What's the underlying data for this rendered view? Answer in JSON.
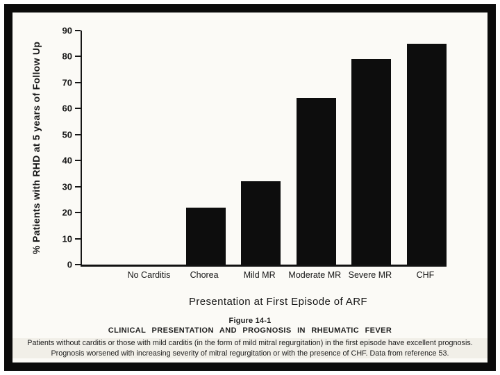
{
  "page": {
    "background": "#fbfaf6",
    "frame_color": "#0b0b0b"
  },
  "chart_data": {
    "type": "bar",
    "categories": [
      "No Carditis",
      "Chorea",
      "Mild MR",
      "Moderate MR",
      "Severe MR",
      "CHF"
    ],
    "values": [
      0,
      22,
      32,
      64,
      79,
      85
    ],
    "title": "",
    "xlabel": "Presentation at First Episode of ARF",
    "ylabel": "% Patients with RHD at 5 years of Follow Up",
    "ylim": [
      0,
      90
    ],
    "ytick_step": 10,
    "grid": false,
    "legend": false,
    "bar_color": "#0d0d0d",
    "axis_color": "#161616"
  },
  "caption": {
    "figure_label": "Figure 14-1",
    "title": "CLINICAL PRESENTATION AND PROGNOSIS IN RHEUMATIC FEVER",
    "line1": "Patients without carditis or those with mild carditis (in the form of mild mitral regurgitation) in the first episode have excellent prognosis.",
    "line2": "Prognosis worsened with increasing severity of mitral regurgitation or with the presence of CHF. Data from reference 53."
  }
}
